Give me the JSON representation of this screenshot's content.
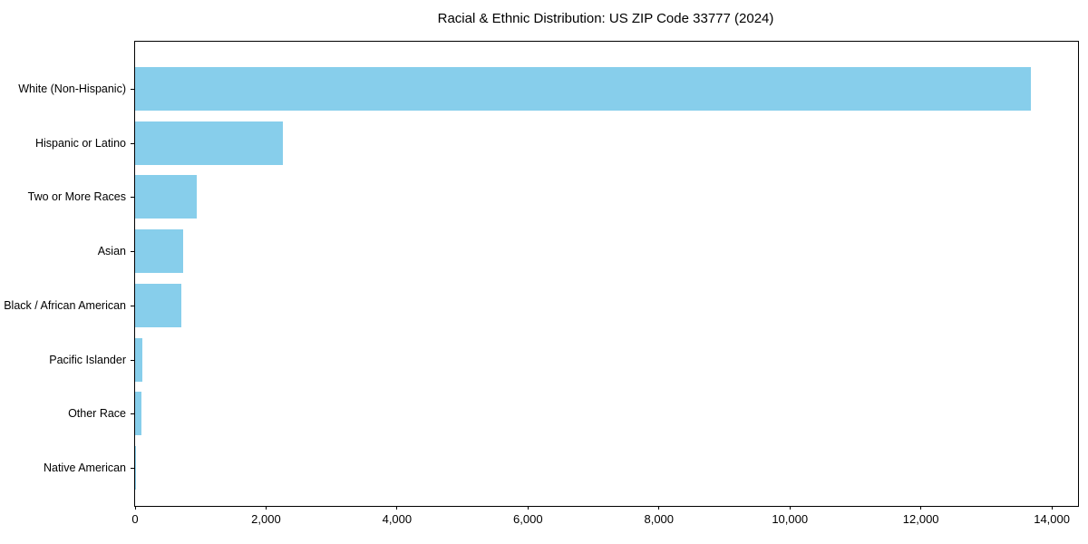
{
  "chart_data": {
    "type": "bar",
    "orientation": "horizontal",
    "title": "Racial & Ethnic Distribution: US ZIP Code 33777 (2024)",
    "categories": [
      "White (Non-Hispanic)",
      "Hispanic or Latino",
      "Two or More Races",
      "Asian",
      "Black / African American",
      "Pacific Islander",
      "Other Race",
      "Native American"
    ],
    "values": [
      13680,
      2260,
      940,
      730,
      710,
      110,
      90,
      15
    ],
    "xlabel": "",
    "ylabel": "",
    "xlim": [
      0,
      14400
    ],
    "x_ticks": [
      0,
      2000,
      4000,
      6000,
      8000,
      10000,
      12000,
      14000
    ],
    "x_tick_labels": [
      "0",
      "2,000",
      "4,000",
      "6,000",
      "8,000",
      "10,000",
      "12,000",
      "14,000"
    ],
    "grid": false,
    "legend": "none",
    "sort_order": "descending",
    "bar_color": "#87CEEB"
  },
  "colors": {
    "bar": "#87CEEB",
    "axis": "#000000",
    "background": "#ffffff",
    "text": "#000000"
  }
}
